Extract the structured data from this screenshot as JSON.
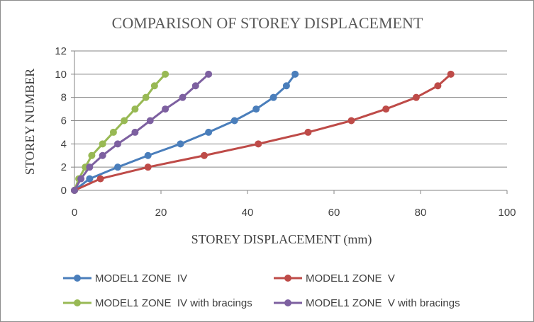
{
  "chart_data": {
    "type": "line",
    "title": "COMPARISON OF STOREY DISPLACEMENT",
    "xlabel": "STOREY DISPLACEMENT (mm)",
    "ylabel": "STOREY NUMBER",
    "xlim": [
      0,
      100
    ],
    "ylim": [
      0,
      12
    ],
    "xticks": [
      "0",
      "20",
      "40",
      "60",
      "80",
      "100"
    ],
    "yticks": [
      "0",
      "2",
      "4",
      "6",
      "8",
      "10",
      "12"
    ],
    "grid": "horizontal",
    "legend_position": "bottom",
    "series": [
      {
        "name": "MODEL1 ZONE  IV",
        "color": "#4a7ebb",
        "points": [
          [
            0,
            0
          ],
          [
            3.5,
            1
          ],
          [
            10,
            2
          ],
          [
            17,
            3
          ],
          [
            24.5,
            4
          ],
          [
            31,
            5
          ],
          [
            37,
            6
          ],
          [
            42,
            7
          ],
          [
            46,
            8
          ],
          [
            49,
            9
          ],
          [
            51,
            10
          ]
        ]
      },
      {
        "name": "MODEL1 ZONE  V",
        "color": "#be4b48",
        "points": [
          [
            0,
            0
          ],
          [
            6,
            1
          ],
          [
            17,
            2
          ],
          [
            30,
            3
          ],
          [
            42.5,
            4
          ],
          [
            54,
            5
          ],
          [
            64,
            6
          ],
          [
            72,
            7
          ],
          [
            79,
            8
          ],
          [
            84,
            9
          ],
          [
            87,
            10
          ]
        ]
      },
      {
        "name": "MODEL1 ZONE  IV with bracings",
        "color": "#98b954",
        "points": [
          [
            0,
            0
          ],
          [
            1,
            1
          ],
          [
            2.5,
            2
          ],
          [
            4,
            3
          ],
          [
            6.5,
            4
          ],
          [
            9,
            5
          ],
          [
            11.5,
            6
          ],
          [
            14,
            7
          ],
          [
            16.5,
            8
          ],
          [
            18.5,
            9
          ],
          [
            21,
            10
          ]
        ]
      },
      {
        "name": "MODEL1 ZONE  V with bracings",
        "color": "#7d60a0",
        "points": [
          [
            0,
            0
          ],
          [
            1.5,
            1
          ],
          [
            3.5,
            2
          ],
          [
            6.5,
            3
          ],
          [
            10,
            4
          ],
          [
            14,
            5
          ],
          [
            17.5,
            6
          ],
          [
            21,
            7
          ],
          [
            25,
            8
          ],
          [
            28,
            9
          ],
          [
            31,
            10
          ]
        ]
      }
    ]
  }
}
